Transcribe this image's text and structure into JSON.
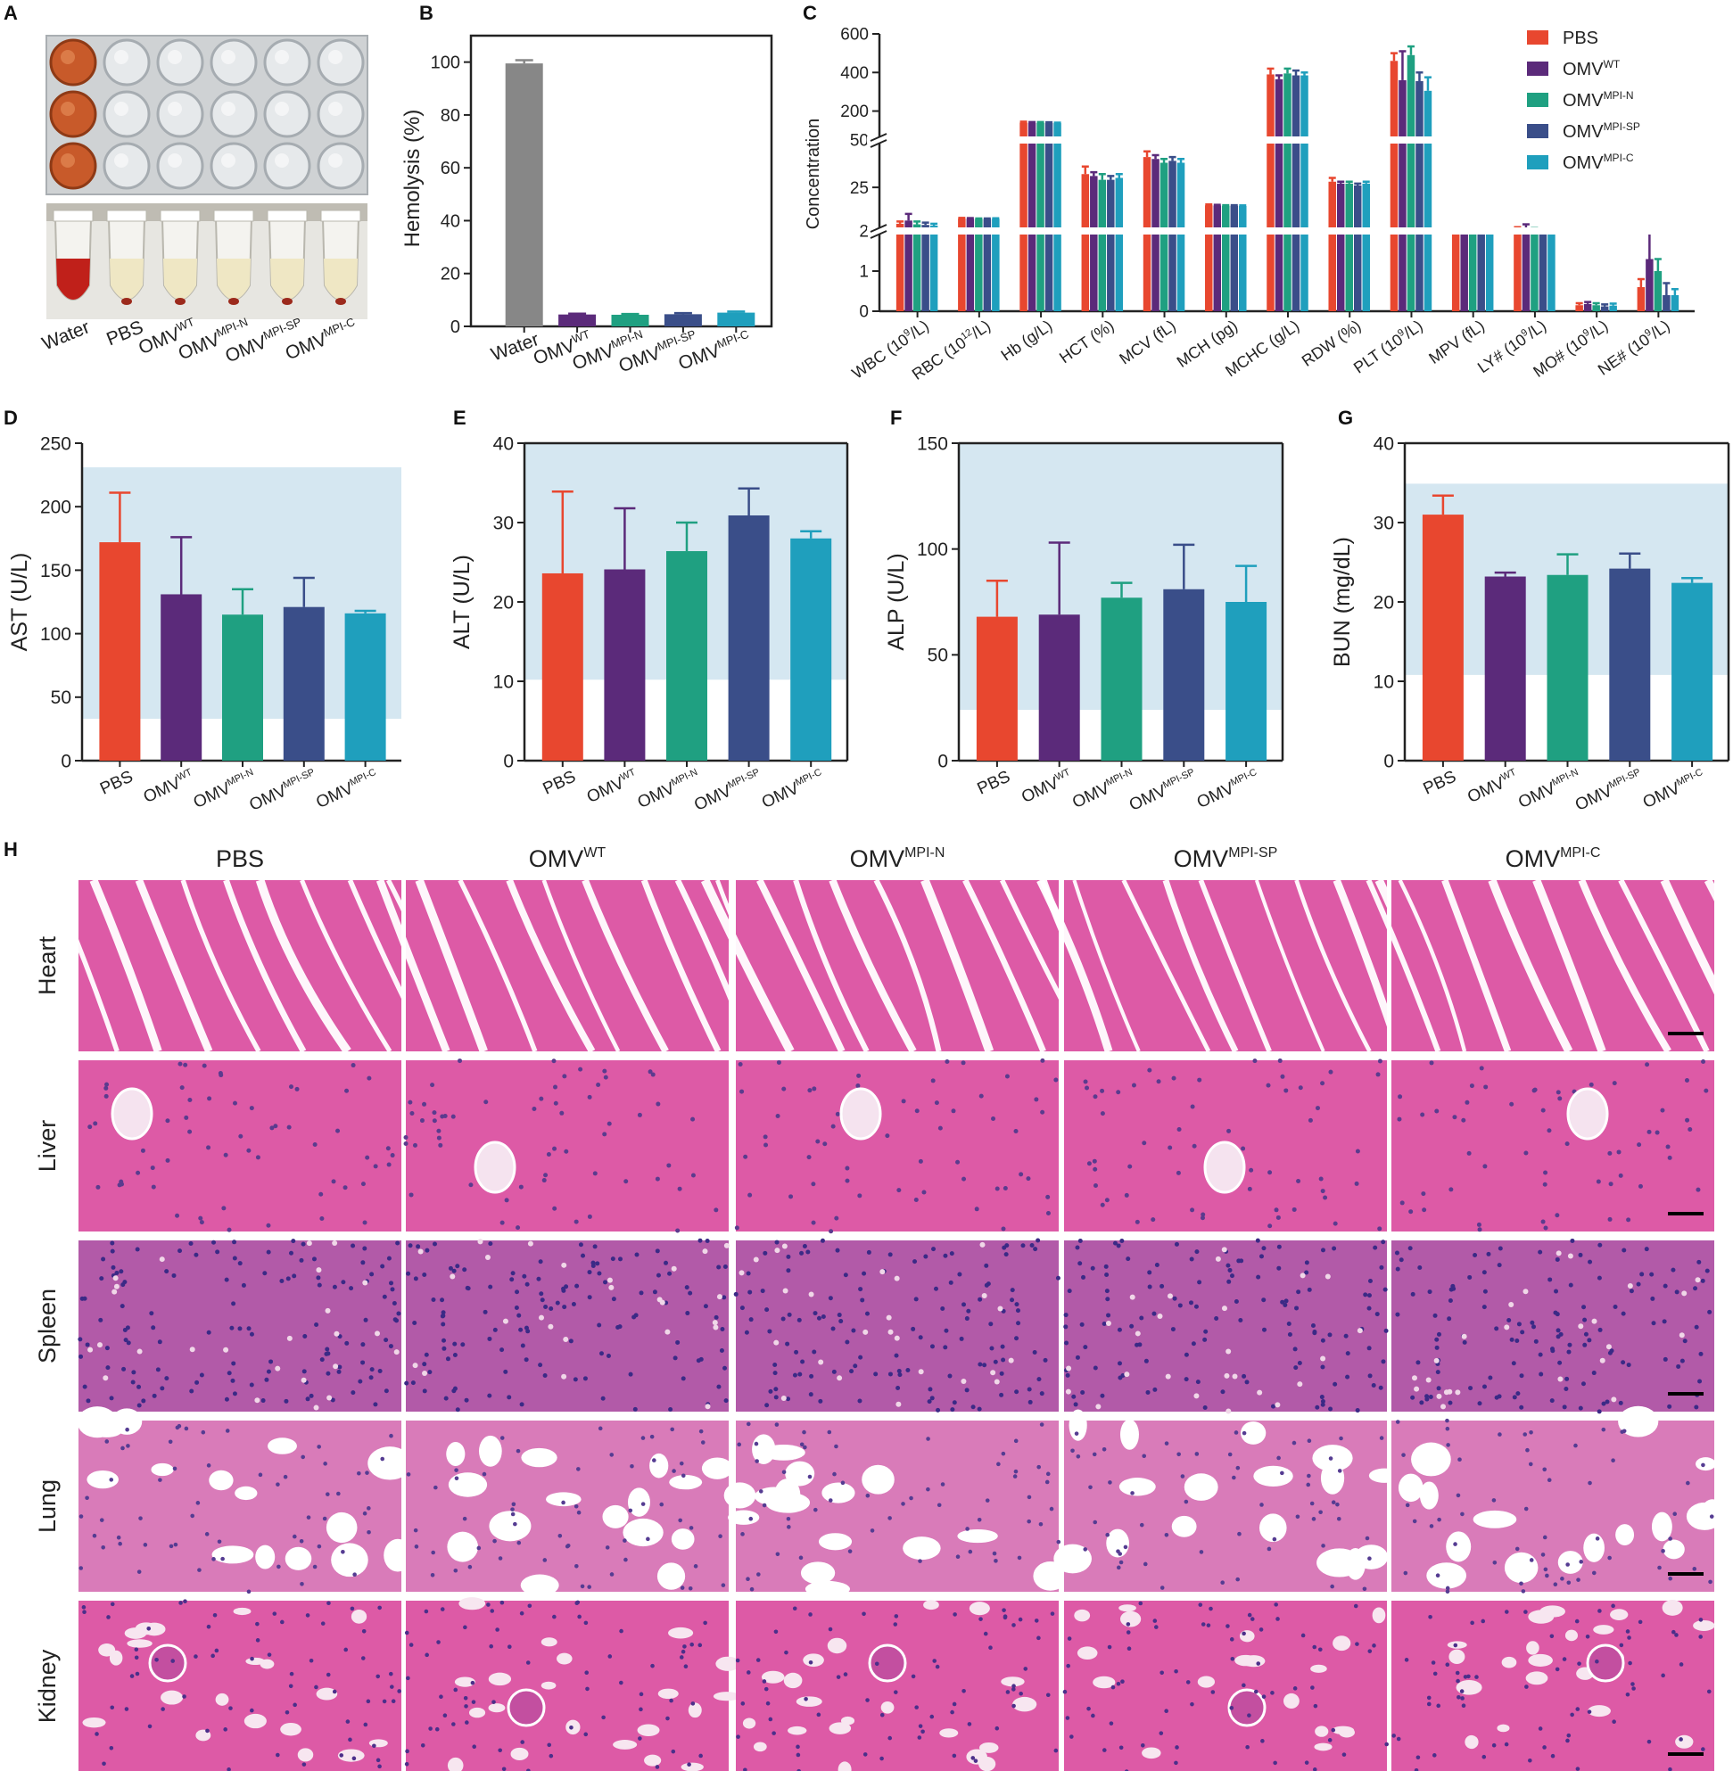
{
  "panel_letters": {
    "A": "A",
    "B": "B",
    "C": "C",
    "D": "D",
    "E": "E",
    "F": "F",
    "G": "G",
    "H": "H"
  },
  "groups": [
    "PBS",
    "OMVWT",
    "OMVMPI-N",
    "OMVMPI-SP",
    "OMVMPI-C"
  ],
  "colors": {
    "PBS": "#e8472f",
    "OMVWT": "#5b2a7a",
    "OMVMPI-N": "#1fa081",
    "OMVMPI-SP": "#3a4e89",
    "OMVMPI-C": "#1f9fbd",
    "Water": "#878787",
    "reference_range": "#d5e7f1"
  },
  "panel_a": {
    "tube_labels": [
      {
        "base": "Water",
        "sup": ""
      },
      {
        "base": "PBS",
        "sup": ""
      },
      {
        "base": "OMV",
        "sup": "WT"
      },
      {
        "base": "OMV",
        "sup": "MPI-N"
      },
      {
        "base": "OMV",
        "sup": "MPI-SP"
      },
      {
        "base": "OMV",
        "sup": "MPI-C"
      }
    ],
    "well_fill": [
      "red",
      "clear",
      "clear",
      "clear",
      "clear",
      "clear"
    ],
    "tube_fill": [
      "red",
      "pale",
      "pale",
      "pale",
      "pale",
      "pale"
    ]
  },
  "panel_h": {
    "columns": [
      {
        "base": "PBS",
        "sup": ""
      },
      {
        "base": "OMV",
        "sup": "WT"
      },
      {
        "base": "OMV",
        "sup": "MPI-N"
      },
      {
        "base": "OMV",
        "sup": "MPI-SP"
      },
      {
        "base": "OMV",
        "sup": "MPI-C"
      }
    ],
    "rows": [
      "Heart",
      "Liver",
      "Spleen",
      "Lung",
      "Kidney"
    ]
  },
  "chart_data": [
    {
      "panel": "B",
      "type": "bar",
      "ylabel": "Hemolysis (%)",
      "ylim": [
        0,
        110
      ],
      "yticks": [
        0,
        20,
        40,
        60,
        80,
        100
      ],
      "categories": [
        {
          "base": "Water",
          "sup": ""
        },
        {
          "base": "OMV",
          "sup": "WT"
        },
        {
          "base": "OMV",
          "sup": "MPI-N"
        },
        {
          "base": "OMV",
          "sup": "MPI-SP"
        },
        {
          "base": "OMV",
          "sup": "MPI-C"
        }
      ],
      "series_keys": [
        "Water",
        "OMVWT",
        "OMVMPI-N",
        "OMVMPI-SP",
        "OMVMPI-C"
      ],
      "values": [
        99.5,
        4.5,
        4.4,
        4.6,
        5.2
      ],
      "errors": [
        1.2,
        0.3,
        0.3,
        0.4,
        0.4
      ]
    },
    {
      "panel": "C",
      "type": "bar",
      "ylabel": "Concentration",
      "broken_axis": [
        {
          "range": [
            0,
            2
          ],
          "ticks": [
            0,
            1,
            2
          ]
        },
        {
          "range": [
            2,
            50
          ],
          "ticks": [
            25,
            50
          ]
        },
        {
          "range": [
            50,
            600
          ],
          "ticks": [
            200,
            400,
            600
          ]
        }
      ],
      "categories": [
        {
          "base": "WBC (10",
          "sup": "9",
          "tail": "/L)"
        },
        {
          "base": "RBC (10",
          "sup": "12",
          "tail": "/L)"
        },
        {
          "base": "Hb (g/L)",
          "sup": "",
          "tail": ""
        },
        {
          "base": "HCT (%)",
          "sup": "",
          "tail": ""
        },
        {
          "base": "MCV (fL)",
          "sup": "",
          "tail": ""
        },
        {
          "base": "MCH (pg)",
          "sup": "",
          "tail": ""
        },
        {
          "base": "MCHC (g/L)",
          "sup": "",
          "tail": ""
        },
        {
          "base": "RDW (%)",
          "sup": "",
          "tail": ""
        },
        {
          "base": "PLT (10",
          "sup": "9",
          "tail": "/L)"
        },
        {
          "base": "MPV (fL)",
          "sup": "",
          "tail": ""
        },
        {
          "base": "LY# (10",
          "sup": "9",
          "tail": "/L)"
        },
        {
          "base": "MO# (10",
          "sup": "9",
          "tail": "/L)"
        },
        {
          "base": "NE# (10",
          "sup": "9",
          "tail": "/L)"
        }
      ],
      "legend": [
        {
          "key": "PBS",
          "base": "PBS",
          "sup": ""
        },
        {
          "key": "OMVWT",
          "base": "OMV",
          "sup": "WT"
        },
        {
          "key": "OMVMPI-N",
          "base": "OMV",
          "sup": "MPI-N"
        },
        {
          "key": "OMVMPI-SP",
          "base": "OMV",
          "sup": "MPI-SP"
        },
        {
          "key": "OMVMPI-C",
          "base": "OMV",
          "sup": "MPI-C"
        }
      ],
      "legend_position": "top-right",
      "series": [
        {
          "key": "PBS",
          "values": [
            5.8,
            8.5,
            140,
            32,
            41,
            15.5,
            390,
            28,
            460,
            2.0,
            3.0,
            0.15,
            0.6
          ],
          "errors": [
            1.2,
            0.4,
            5,
            4,
            3,
            0.5,
            30,
            2,
            40,
            0.05,
            1.0,
            0.05,
            0.2
          ]
        },
        {
          "key": "OMVWT",
          "values": [
            7.5,
            8.4,
            138,
            31,
            40,
            15.4,
            365,
            27,
            360,
            2.0,
            3.5,
            0.18,
            1.3
          ],
          "errors": [
            3.5,
            0.4,
            5,
            2,
            2,
            0.4,
            20,
            1,
            150,
            0.05,
            2.0,
            0.05,
            0.7
          ]
        },
        {
          "key": "OMVMPI-N",
          "values": [
            5.5,
            8.3,
            139,
            29,
            38,
            15.3,
            395,
            27,
            490,
            2.0,
            2.5,
            0.15,
            1.0
          ],
          "errors": [
            1.5,
            0.3,
            4,
            3,
            2,
            0.3,
            25,
            1,
            45,
            0.05,
            1.0,
            0.05,
            0.3
          ]
        },
        {
          "key": "OMVMPI-SP",
          "values": [
            5.2,
            8.3,
            138,
            29,
            39,
            15.3,
            385,
            26,
            355,
            2.0,
            2.4,
            0.12,
            0.4
          ],
          "errors": [
            1.2,
            0.3,
            4,
            2,
            2,
            0.3,
            25,
            1,
            45,
            0.05,
            0.5,
            0.05,
            0.3
          ]
        },
        {
          "key": "OMVMPI-C",
          "values": [
            4.8,
            8.4,
            137,
            30,
            38,
            15.2,
            385,
            27,
            305,
            2.0,
            2.2,
            0.14,
            0.4
          ],
          "errors": [
            1.0,
            0.3,
            3,
            2,
            2,
            0.3,
            15,
            1,
            70,
            0.05,
            0.5,
            0.05,
            0.15
          ]
        }
      ]
    },
    {
      "panel": "D",
      "type": "bar",
      "ylabel": "AST (U/L)",
      "ylim": [
        0,
        250
      ],
      "yticks": [
        0,
        50,
        100,
        150,
        200,
        250
      ],
      "reference_range": [
        33,
        231
      ],
      "values": [
        172,
        131,
        115,
        121,
        116
      ],
      "errors": [
        39,
        45,
        20,
        23,
        2
      ]
    },
    {
      "panel": "E",
      "type": "bar",
      "ylabel": "ALT (U/L)",
      "ylim": [
        0,
        40
      ],
      "yticks": [
        0,
        10,
        20,
        30,
        40
      ],
      "reference_range": [
        10.2,
        40
      ],
      "values": [
        23.6,
        24.1,
        26.4,
        30.9,
        28.0
      ],
      "errors": [
        10.3,
        7.7,
        3.6,
        3.4,
        0.9
      ]
    },
    {
      "panel": "F",
      "type": "bar",
      "ylabel": "ALP (U/L)",
      "ylim": [
        0,
        150
      ],
      "yticks": [
        0,
        50,
        100,
        150
      ],
      "reference_range": [
        24,
        150
      ],
      "values": [
        68,
        69,
        77,
        81,
        75
      ],
      "errors": [
        17,
        34,
        7,
        21,
        17
      ]
    },
    {
      "panel": "G",
      "type": "bar",
      "ylabel": "BUN (mg/dL)",
      "ylim": [
        0,
        40
      ],
      "yticks": [
        0,
        10,
        20,
        30,
        40
      ],
      "reference_range": [
        10.8,
        34.9
      ],
      "values": [
        31.0,
        23.2,
        23.4,
        24.2,
        22.4
      ],
      "errors": [
        2.4,
        0.5,
        2.6,
        1.9,
        0.6
      ]
    }
  ]
}
